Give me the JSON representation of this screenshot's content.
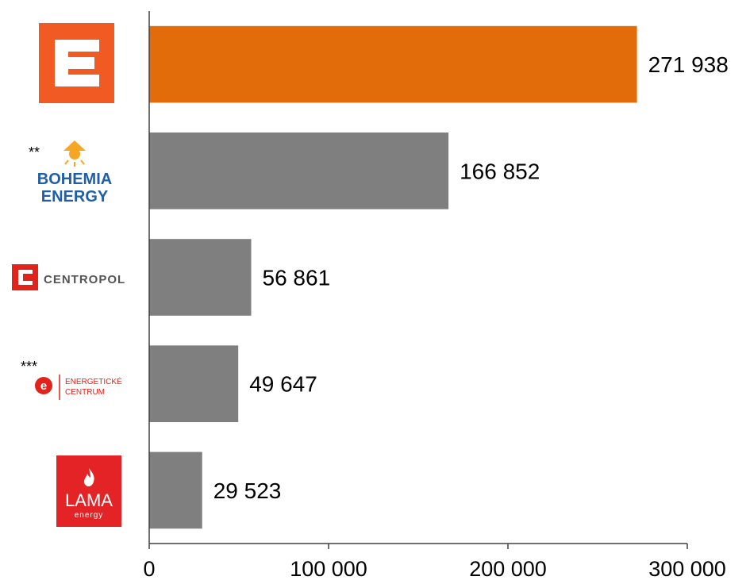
{
  "chart_data": {
    "type": "bar",
    "orientation": "horizontal",
    "categories": [
      "CEZ",
      "Bohemia Energy",
      "Centropol",
      "Energetické Centrum",
      "LAMA energy"
    ],
    "values": [
      271938,
      166852,
      56861,
      49647,
      29523
    ],
    "value_labels": [
      "271 938",
      "166 852",
      "56 861",
      "49 647",
      "29 523"
    ],
    "xlim": [
      0,
      300000
    ],
    "x_ticks": [
      0,
      100000,
      200000,
      300000
    ],
    "x_tick_labels": [
      "0",
      "100 000",
      "200 000",
      "300 000"
    ],
    "grid": false,
    "colors": {
      "highlight": "#E36C0A",
      "default": "#7F7F7F",
      "axis": "#404040"
    }
  },
  "logos": {
    "cez": {
      "icon": "cez-logo",
      "color": "#F15A22"
    },
    "bohemia": {
      "icon": "bohemia-energy-logo",
      "marker": "**",
      "line1": "BOHEMIA",
      "line2": "ENERGY",
      "color": "#1F5FA8",
      "sun_color": "#F5A623"
    },
    "centropol": {
      "icon": "centropol-logo",
      "text": "CENTROPOL",
      "color": "#E2231A",
      "text_color": "#555555"
    },
    "ecentrum": {
      "icon": "energeticke-centrum-logo",
      "marker": "***",
      "line1": "ENERGETICKÉ",
      "line2": "CENTRUM",
      "color": "#E2231A"
    },
    "lama": {
      "icon": "lama-energy-logo",
      "text": "LAMA",
      "sub": "energy",
      "color": "#E42326"
    }
  }
}
